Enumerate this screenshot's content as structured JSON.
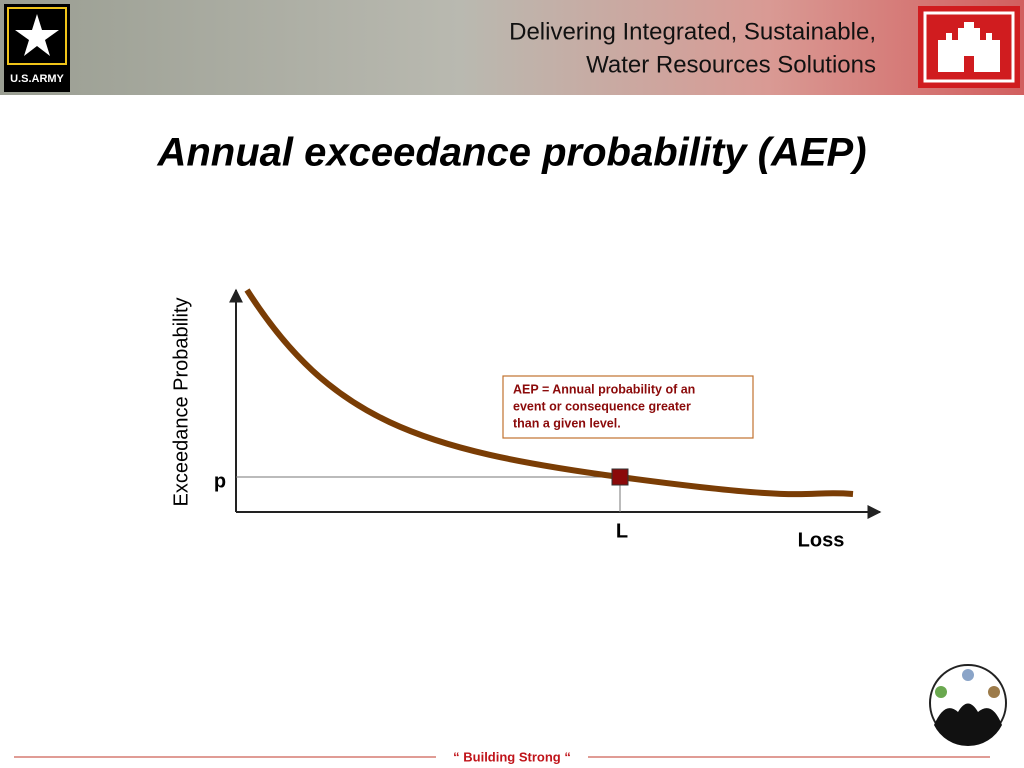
{
  "header": {
    "tagline": [
      "Delivering Integrated, Sustainable,",
      "Water Resources Solutions"
    ],
    "logo_text": "U.S.ARMY"
  },
  "title": "Annual exceedance probability (AEP)",
  "diagram": {
    "y_axis_label": "Exceedance Probability",
    "x_axis_label": "Loss",
    "p_label": "p",
    "l_label": "L",
    "note": [
      "AEP = Annual probability of an",
      "event or consequence greater",
      "than a given level."
    ]
  },
  "footer": {
    "motto": "“ Building Strong “"
  }
}
